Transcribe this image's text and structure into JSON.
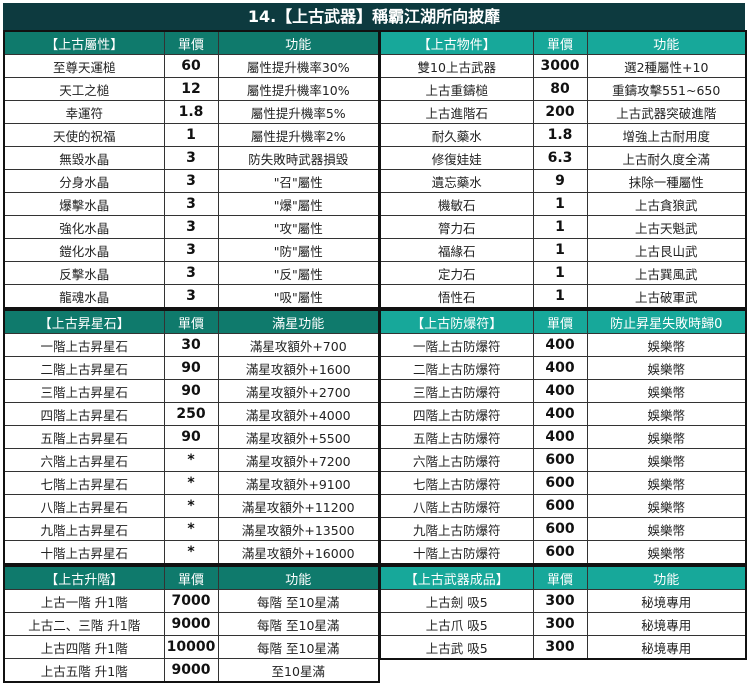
{
  "title": "14.【上古武器】稱霸江湖所向披靡",
  "colors": {
    "title_bg": "#0d3a3f",
    "left_header": "#0f7a6c",
    "right_header": "#17a89a"
  },
  "left": [
    {
      "headers": [
        "【上古屬性】",
        "單價",
        "功能"
      ],
      "rows": [
        [
          "至尊天運槌",
          "60",
          "屬性提升機率30%"
        ],
        [
          "天工之槌",
          "12",
          "屬性提升機率10%"
        ],
        [
          "幸運符",
          "1.8",
          "屬性提升機率5%"
        ],
        [
          "天使的祝福",
          "1",
          "屬性提升機率2%"
        ],
        [
          "無毀水晶",
          "3",
          "防失敗時武器損毀"
        ],
        [
          "分身水晶",
          "3",
          "\"召\"屬性"
        ],
        [
          "爆擊水晶",
          "3",
          "\"爆\"屬性"
        ],
        [
          "強化水晶",
          "3",
          "\"攻\"屬性"
        ],
        [
          "鎧化水晶",
          "3",
          "\"防\"屬性"
        ],
        [
          "反擊水晶",
          "3",
          "\"反\"屬性"
        ],
        [
          "龍魂水晶",
          "3",
          "\"吸\"屬性"
        ]
      ]
    },
    {
      "headers": [
        "【上古昇星石】",
        "單價",
        "滿星功能"
      ],
      "rows": [
        [
          "一階上古昇星石",
          "30",
          "滿星攻額外+700"
        ],
        [
          "二階上古昇星石",
          "90",
          "滿星攻額外+1600"
        ],
        [
          "三階上古昇星石",
          "90",
          "滿星攻額外+2700"
        ],
        [
          "四階上古昇星石",
          "250",
          "滿星攻額外+4000"
        ],
        [
          "五階上古昇星石",
          "90",
          "滿星攻額外+5500"
        ],
        [
          "六階上古昇星石",
          "*",
          "滿星攻額外+7200"
        ],
        [
          "七階上古昇星石",
          "*",
          "滿星攻額外+9100"
        ],
        [
          "八階上古昇星石",
          "*",
          "滿星攻額外+11200"
        ],
        [
          "九階上古昇星石",
          "*",
          "滿星攻額外+13500"
        ],
        [
          "十階上古昇星石",
          "*",
          "滿星攻額外+16000"
        ]
      ]
    },
    {
      "headers": [
        "【上古升階】",
        "單價",
        "功能"
      ],
      "rows": [
        [
          "上古一階 升1階",
          "7000",
          "每階 至10星滿"
        ],
        [
          "上古二、三階 升1階",
          "9000",
          "每階 至10星滿"
        ],
        [
          "上古四階 升1階",
          "10000",
          "每階 至10星滿"
        ],
        [
          "上古五階 升1階",
          "9000",
          "至10星滿"
        ]
      ]
    }
  ],
  "right": [
    {
      "headers": [
        "【上古物件】",
        "單價",
        "功能"
      ],
      "rows": [
        [
          "雙10上古武器",
          "3000",
          "選2種屬性+10"
        ],
        [
          "上古重鑄槌",
          "80",
          "重鑄攻擊551~650"
        ],
        [
          "上古進階石",
          "200",
          "上古武器突破進階"
        ],
        [
          "耐久藥水",
          "1.8",
          "增強上古耐用度"
        ],
        [
          "修復娃娃",
          "6.3",
          "上古耐久度全滿"
        ],
        [
          "遺忘藥水",
          "9",
          "抹除一種屬性"
        ],
        [
          "機敏石",
          "1",
          "上古貪狼武"
        ],
        [
          "膂力石",
          "1",
          "上古天魁武"
        ],
        [
          "福緣石",
          "1",
          "上古艮山武"
        ],
        [
          "定力石",
          "1",
          "上古巽風武"
        ],
        [
          "悟性石",
          "1",
          "上古破軍武"
        ]
      ]
    },
    {
      "headers": [
        "【上古防爆符】",
        "單價",
        "防止昇星失敗時歸0"
      ],
      "rows": [
        [
          "一階上古防爆符",
          "400",
          "娛樂幣"
        ],
        [
          "二階上古防爆符",
          "400",
          "娛樂幣"
        ],
        [
          "三階上古防爆符",
          "400",
          "娛樂幣"
        ],
        [
          "四階上古防爆符",
          "400",
          "娛樂幣"
        ],
        [
          "五階上古防爆符",
          "400",
          "娛樂幣"
        ],
        [
          "六階上古防爆符",
          "600",
          "娛樂幣"
        ],
        [
          "七階上古防爆符",
          "600",
          "娛樂幣"
        ],
        [
          "八階上古防爆符",
          "600",
          "娛樂幣"
        ],
        [
          "九階上古防爆符",
          "600",
          "娛樂幣"
        ],
        [
          "十階上古防爆符",
          "600",
          "娛樂幣"
        ]
      ]
    },
    {
      "headers": [
        "【上古武器成品】",
        "單價",
        "功能"
      ],
      "rows": [
        [
          "上古劍 吸5",
          "300",
          "秘境專用"
        ],
        [
          "上古爪 吸5",
          "300",
          "秘境專用"
        ],
        [
          "上古武 吸5",
          "300",
          "秘境專用"
        ]
      ]
    }
  ]
}
